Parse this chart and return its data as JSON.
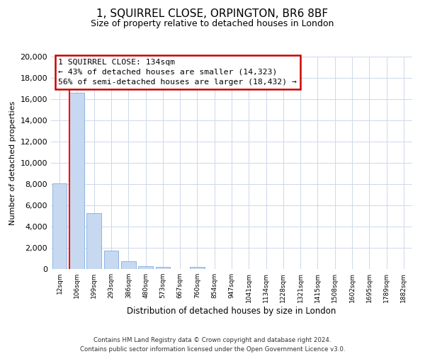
{
  "title": "1, SQUIRREL CLOSE, ORPINGTON, BR6 8BF",
  "subtitle": "Size of property relative to detached houses in London",
  "xlabel": "Distribution of detached houses by size in London",
  "ylabel": "Number of detached properties",
  "bar_labels": [
    "12sqm",
    "106sqm",
    "199sqm",
    "293sqm",
    "386sqm",
    "480sqm",
    "573sqm",
    "667sqm",
    "760sqm",
    "854sqm",
    "947sqm",
    "1041sqm",
    "1134sqm",
    "1228sqm",
    "1321sqm",
    "1415sqm",
    "1508sqm",
    "1602sqm",
    "1695sqm",
    "1789sqm",
    "1882sqm"
  ],
  "bar_values": [
    8100,
    16600,
    5300,
    1750,
    750,
    300,
    230,
    0,
    230,
    0,
    0,
    0,
    0,
    0,
    0,
    0,
    0,
    0,
    0,
    0,
    0
  ],
  "bar_color": "#c6d9f1",
  "bar_edge_color": "#8eb4e3",
  "red_line_bar_index": 1,
  "highlight_color": "#ff0000",
  "ylim": [
    0,
    20000
  ],
  "yticks": [
    0,
    2000,
    4000,
    6000,
    8000,
    10000,
    12000,
    14000,
    16000,
    18000,
    20000
  ],
  "annotation_title": "1 SQUIRREL CLOSE: 134sqm",
  "annotation_line1": "← 43% of detached houses are smaller (14,323)",
  "annotation_line2": "56% of semi-detached houses are larger (18,432) →",
  "annotation_box_color": "#ffffff",
  "annotation_box_edge": "#cc0000",
  "footer1": "Contains HM Land Registry data © Crown copyright and database right 2024.",
  "footer2": "Contains public sector information licensed under the Open Government Licence v3.0.",
  "bg_color": "#ffffff",
  "grid_color": "#cdd8ea"
}
